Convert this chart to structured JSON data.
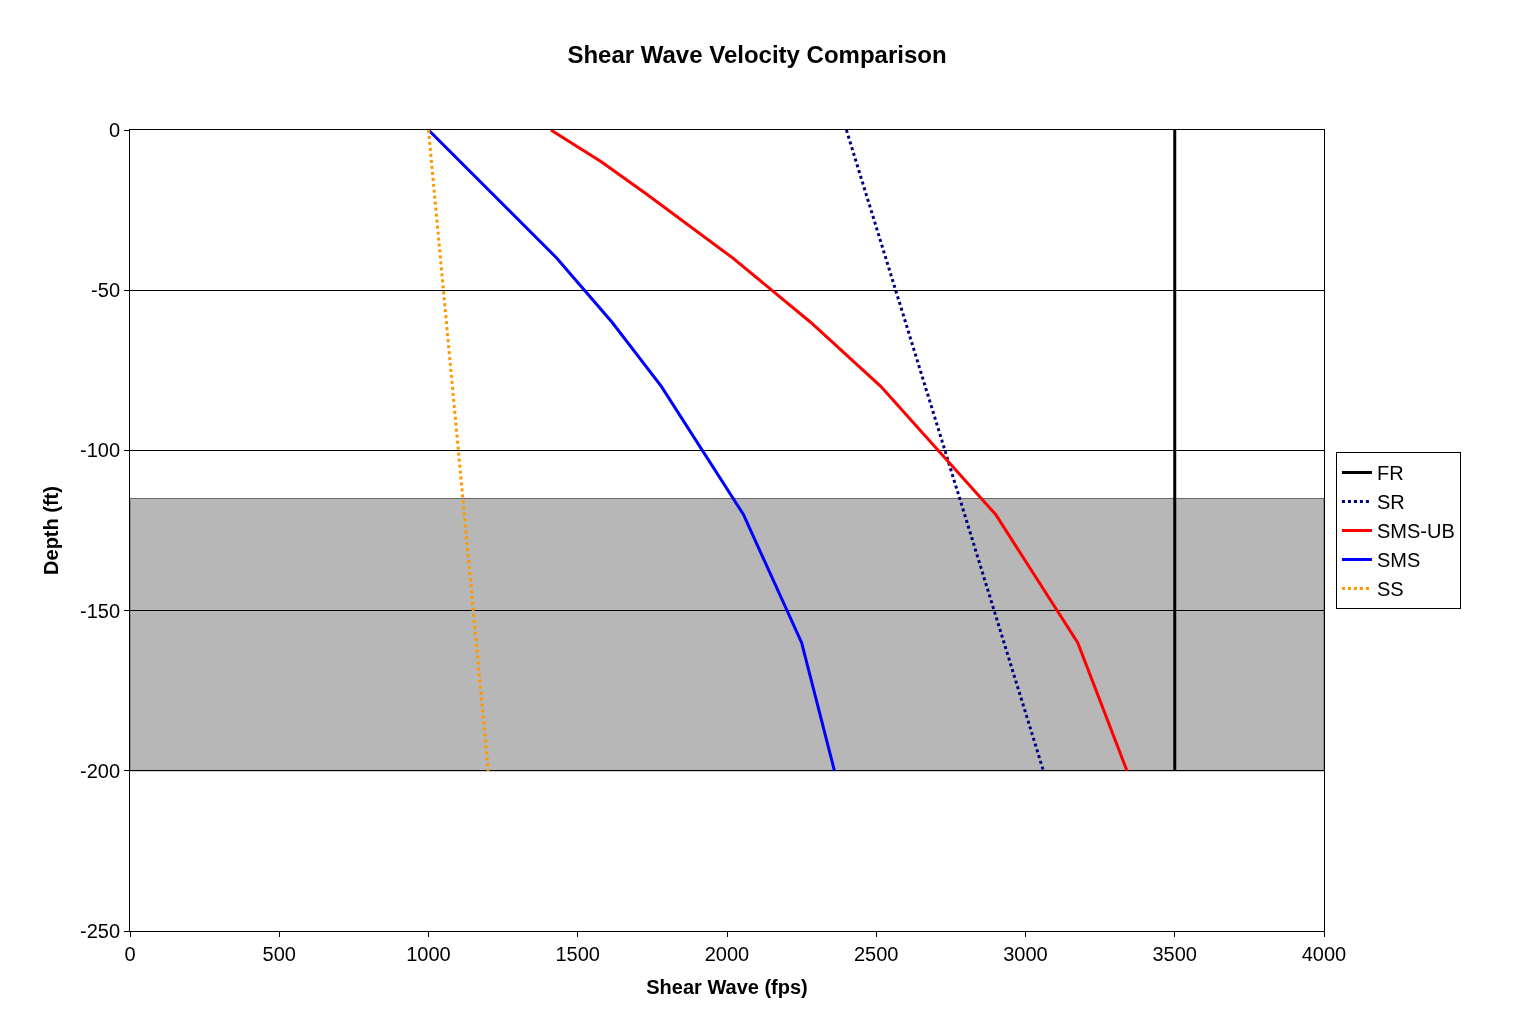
{
  "chart_data": {
    "type": "line",
    "title": "Shear Wave Velocity Comparison",
    "xlabel": "Shear Wave (fps)",
    "ylabel": "Depth (ft)",
    "xlim": [
      0,
      4000
    ],
    "xticks": [
      0,
      500,
      1000,
      1500,
      2000,
      2500,
      3000,
      3500,
      4000
    ],
    "ylim": [
      -250,
      0
    ],
    "yticks": [
      -250,
      -200,
      -150,
      -100,
      -50,
      0
    ],
    "grid": "y",
    "legend": "right",
    "marker": "none",
    "bands": [
      {
        "axis": "y",
        "from": -115,
        "to": -200,
        "color": "#a6a6a6"
      }
    ],
    "series": [
      {
        "name": "FR",
        "color": "#000000",
        "line_style": "solid",
        "x": [
          3500,
          3500
        ],
        "values": [
          0,
          -200
        ]
      },
      {
        "name": "SR",
        "color": "#000080",
        "line_style": "dotted",
        "x": [
          2400,
          3060
        ],
        "values": [
          0,
          -200
        ]
      },
      {
        "name": "SMS-UB",
        "color": "#ff0000",
        "line_style": "solid",
        "x": [
          1410,
          1580,
          1730,
          2020,
          2280,
          2515,
          2900,
          3175,
          3340
        ],
        "values": [
          0,
          -10,
          -20,
          -40,
          -60,
          -80,
          -120,
          -160,
          -200
        ]
      },
      {
        "name": "SMS",
        "color": "#0000ff",
        "line_style": "solid",
        "x": [
          1000,
          1430,
          1615,
          1780,
          2055,
          2250,
          2360
        ],
        "values": [
          0,
          -40,
          -60,
          -80,
          -120,
          -160,
          -200
        ]
      },
      {
        "name": "SS",
        "color": "#ff9900",
        "line_style": "dotted",
        "x": [
          1000,
          1200
        ],
        "values": [
          0,
          -200
        ]
      }
    ]
  }
}
